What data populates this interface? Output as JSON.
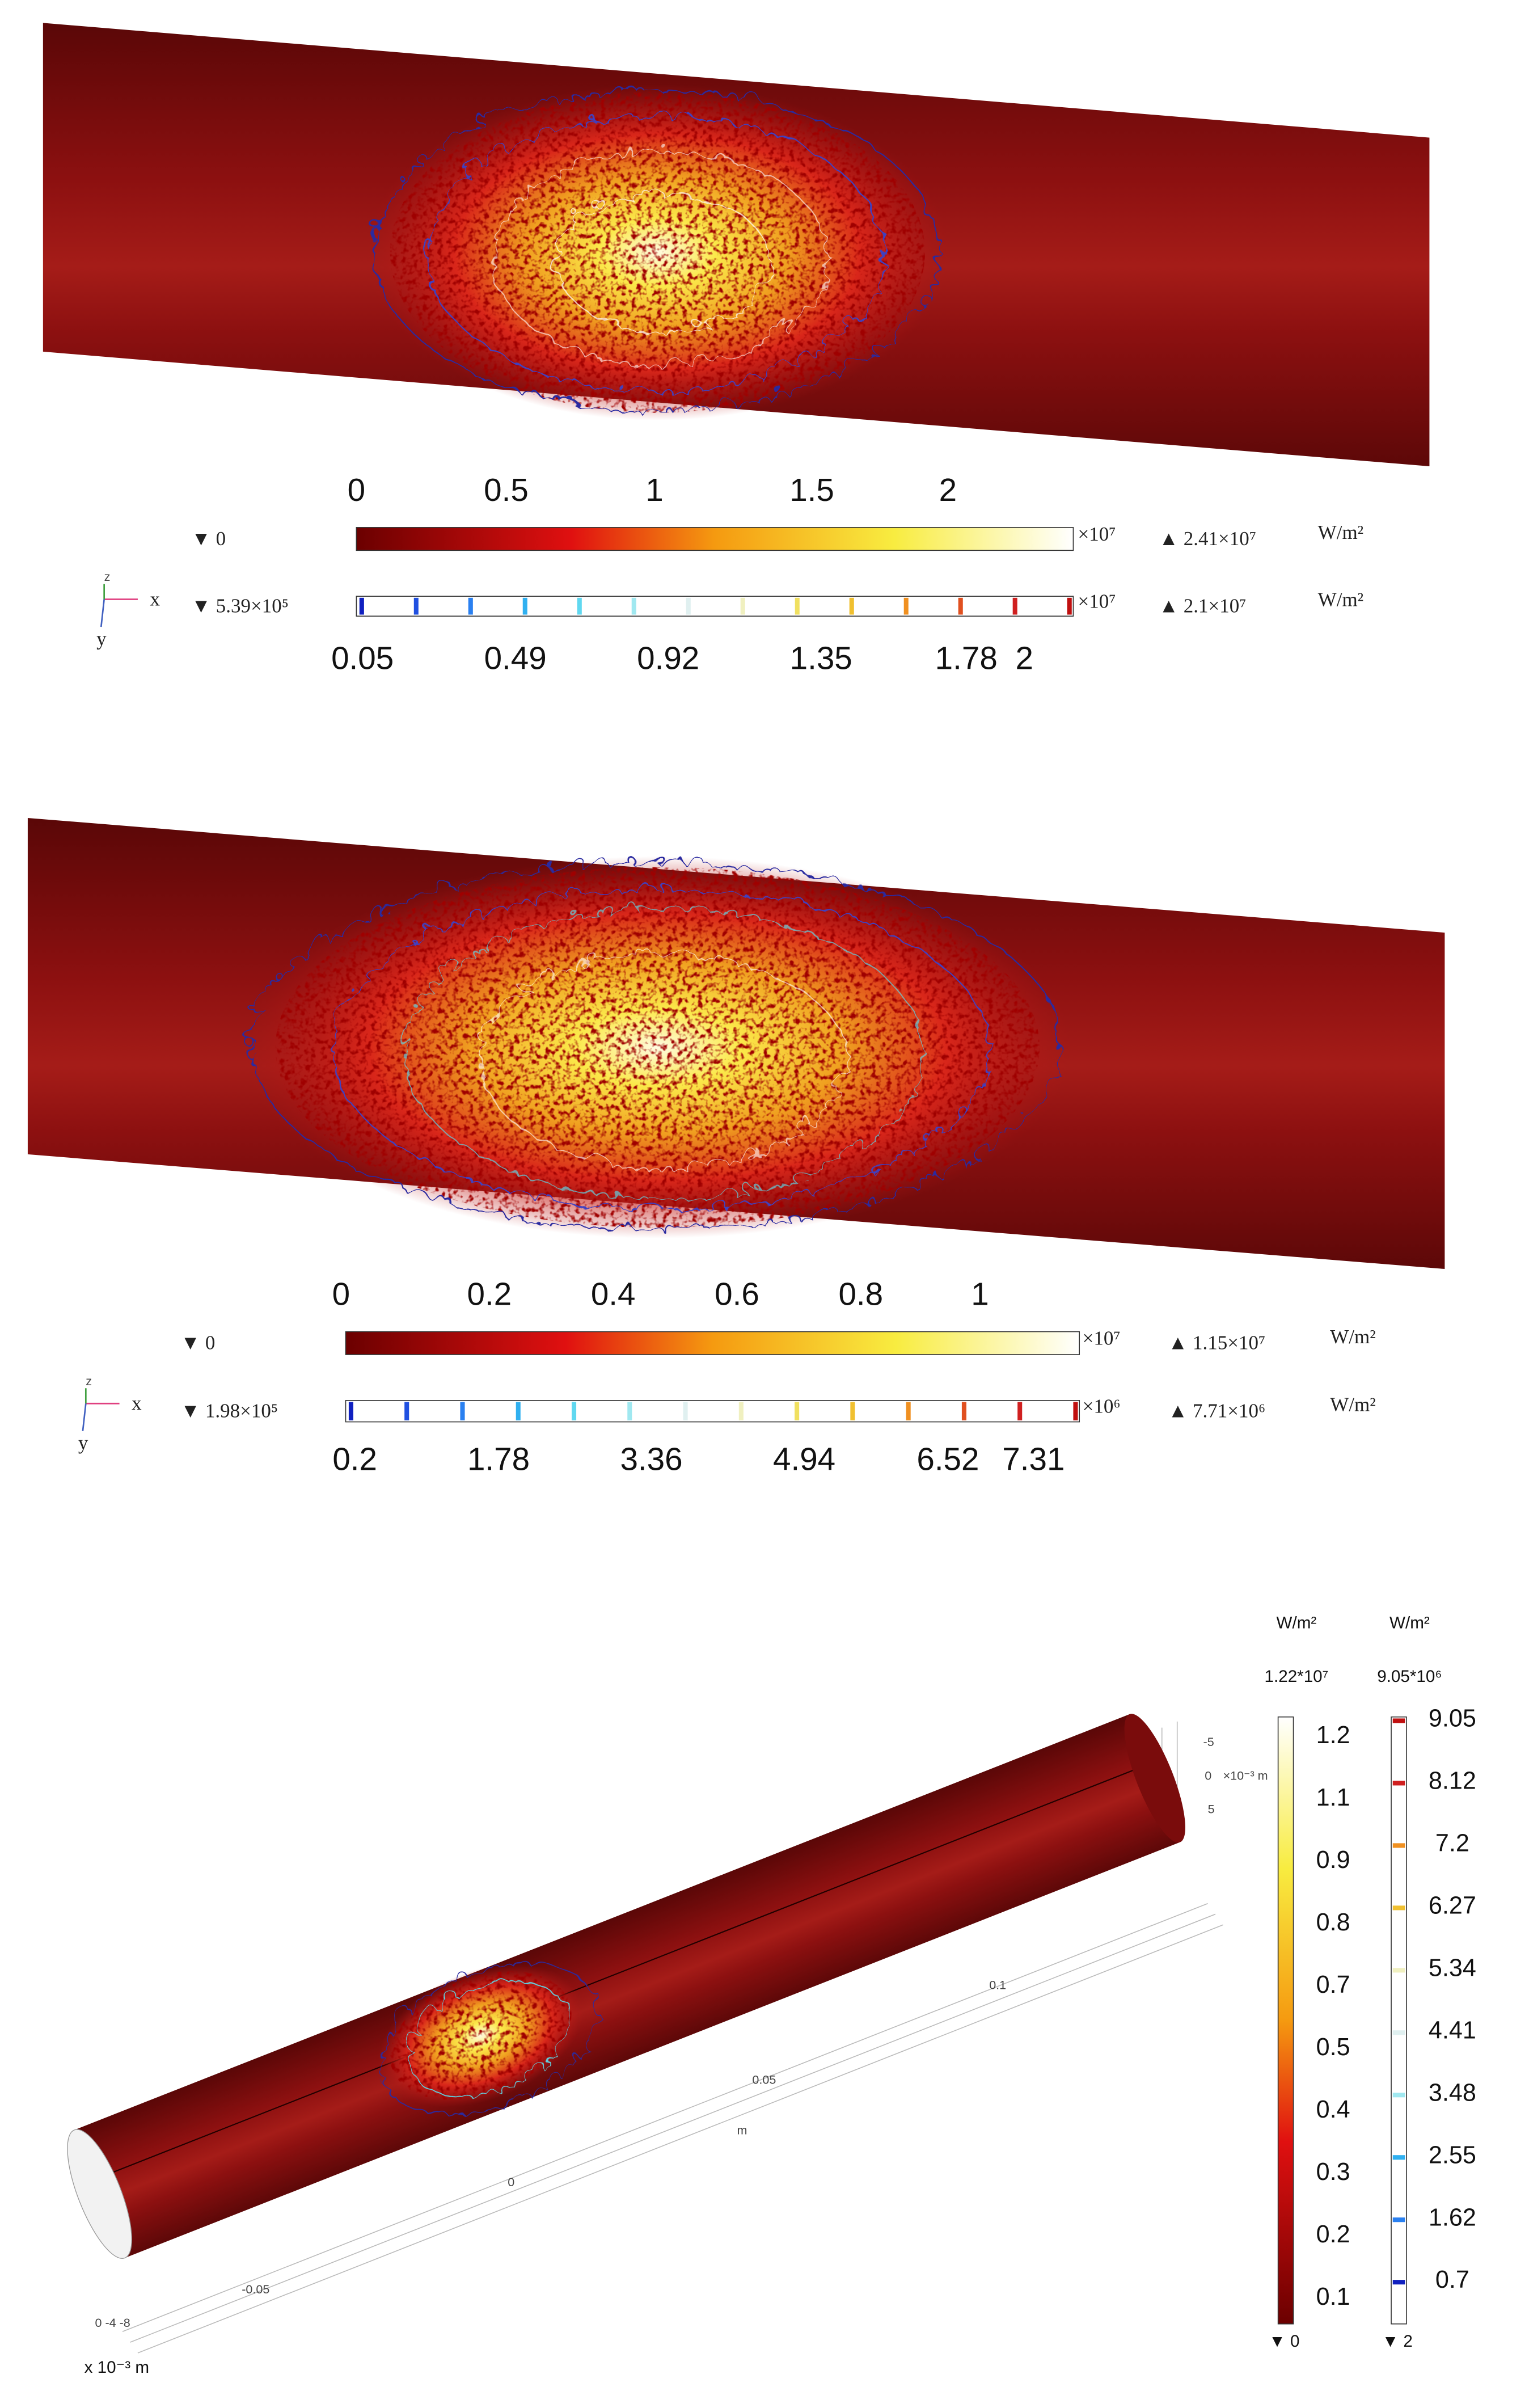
{
  "panels": [
    {
      "bar1": {
        "ticks": [
          "0",
          "0.5",
          "1",
          "1.5",
          "2"
        ],
        "min": "▼ 0",
        "multiplier": "×10⁷",
        "max": "▲ 2.41×10⁷",
        "unit": "W/m²"
      },
      "bar2": {
        "ticks": [
          "0.05",
          "0.49",
          "0.92",
          "1.35",
          "1.78",
          "2"
        ],
        "min": "▼ 5.39×10⁵",
        "multiplier": "×10⁷",
        "max": "▲ 2.1×10⁷",
        "unit": "W/m²"
      },
      "axes": [
        "z",
        "x",
        "y"
      ]
    },
    {
      "bar1": {
        "ticks": [
          "0",
          "0.2",
          "0.4",
          "0.6",
          "0.8",
          "1"
        ],
        "min": "▼ 0",
        "multiplier": "×10⁷",
        "max": "▲ 1.15×10⁷",
        "unit": "W/m²"
      },
      "bar2": {
        "ticks": [
          "0.2",
          "1.78",
          "3.36",
          "4.94",
          "6.52",
          "7.31"
        ],
        "min": "▼ 1.98×10⁵",
        "multiplier": "×10⁶",
        "max": "▲ 7.71×10⁶",
        "unit": "W/m²"
      },
      "axes": [
        "z",
        "x",
        "y"
      ]
    }
  ],
  "panel3": {
    "left_bar": {
      "unit": "W/m²",
      "max": "1.22*10⁷",
      "ticks": [
        "1.2",
        "1.1",
        "0.9",
        "0.8",
        "0.7",
        "0.5",
        "0.4",
        "0.3",
        "0.2",
        "0.1"
      ],
      "min": "▼ 0"
    },
    "right_bar": {
      "unit": "W/m²",
      "max": "9.05*10⁶",
      "ticks": [
        "9.05",
        "8.12",
        "7.2",
        "6.27",
        "5.34",
        "4.41",
        "3.48",
        "2.55",
        "1.62",
        "0.7"
      ],
      "min": "▼ 2"
    },
    "axis_labels": [
      "-5",
      "0",
      "×10⁻³ m",
      "5",
      "0.1",
      "0.05",
      "m",
      "0",
      "-0.05",
      "0 -4 -8",
      "x 10⁻³ m"
    ]
  }
}
